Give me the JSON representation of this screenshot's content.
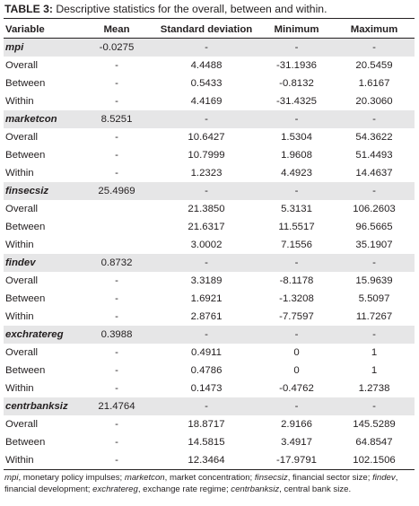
{
  "caption": {
    "label": "TABLE 3:",
    "text": " Descriptive statistics for the overall, between and within."
  },
  "table": {
    "headers": [
      "Variable",
      "Mean",
      "Standard deviation",
      "Minimum",
      "Maximum"
    ],
    "groups": [
      {
        "name": "mpi",
        "summary": [
          "-0.0275",
          "-",
          "-",
          "-"
        ],
        "rows": [
          [
            "Overall",
            "-",
            "4.4488",
            "-31.1936",
            "20.5459"
          ],
          [
            "Between",
            "-",
            "0.5433",
            "-0.8132",
            "1.6167"
          ],
          [
            "Within",
            "-",
            "4.4169",
            "-31.4325",
            "20.3060"
          ]
        ]
      },
      {
        "name": "marketcon",
        "summary": [
          "8.5251",
          "-",
          "-",
          "-"
        ],
        "rows": [
          [
            "Overall",
            "-",
            "10.6427",
            "1.5304",
            "54.3622"
          ],
          [
            "Between",
            "-",
            "10.7999",
            "1.9608",
            "51.4493"
          ],
          [
            "Within",
            "-",
            "1.2323",
            "4.4923",
            "14.4637"
          ]
        ]
      },
      {
        "name": "finsecsiz",
        "summary": [
          "25.4969",
          "-",
          "-",
          "-"
        ],
        "rows": [
          [
            "Overall",
            "",
            "21.3850",
            "5.3131",
            "106.2603"
          ],
          [
            "Between",
            "",
            "21.6317",
            "11.5517",
            "96.5665"
          ],
          [
            "Within",
            "",
            "3.0002",
            "7.1556",
            "35.1907"
          ]
        ]
      },
      {
        "name": "findev",
        "summary": [
          "0.8732",
          "-",
          "-",
          "-"
        ],
        "rows": [
          [
            "Overall",
            "-",
            "3.3189",
            "-8.1178",
            "15.9639"
          ],
          [
            "Between",
            "-",
            "1.6921",
            "-1.3208",
            "5.5097"
          ],
          [
            "Within",
            "-",
            "2.8761",
            "-7.7597",
            "11.7267"
          ]
        ]
      },
      {
        "name": "exchratereg",
        "summary": [
          "0.3988",
          "-",
          "-",
          "-"
        ],
        "rows": [
          [
            "Overall",
            "-",
            "0.4911",
            "0",
            "1"
          ],
          [
            "Between",
            "-",
            "0.4786",
            "0",
            "1"
          ],
          [
            "Within",
            "-",
            "0.1473",
            "-0.4762",
            "1.2738"
          ]
        ]
      },
      {
        "name": "centrbanksiz",
        "summary": [
          "21.4764",
          "-",
          "-",
          "-"
        ],
        "rows": [
          [
            "Overall",
            "-",
            "18.8717",
            "2.9166",
            "145.5289"
          ],
          [
            "Between",
            "-",
            "14.5815",
            "3.4917",
            "64.8547"
          ],
          [
            "Within",
            "-",
            "12.3464",
            "-17.9791",
            "102.1506"
          ]
        ]
      }
    ]
  },
  "footnote": [
    {
      "text": "mpi",
      "italic": true
    },
    {
      "text": ", monetary policy impulses; ",
      "italic": false
    },
    {
      "text": "marketcon",
      "italic": true
    },
    {
      "text": ", market concentration; ",
      "italic": false
    },
    {
      "text": "finsecsiz",
      "italic": true
    },
    {
      "text": ", financial sector size; ",
      "italic": false
    },
    {
      "text": "findev",
      "italic": true
    },
    {
      "text": ", financial development; ",
      "italic": false
    },
    {
      "text": "exchratereg",
      "italic": true
    },
    {
      "text": ", exchange rate regime; ",
      "italic": false
    },
    {
      "text": "centrbanksiz",
      "italic": true
    },
    {
      "text": ", central bank size.",
      "italic": false
    }
  ],
  "colors": {
    "shaded_row": "#e6e6e7",
    "text": "#231f20",
    "rule": "#231f20"
  }
}
